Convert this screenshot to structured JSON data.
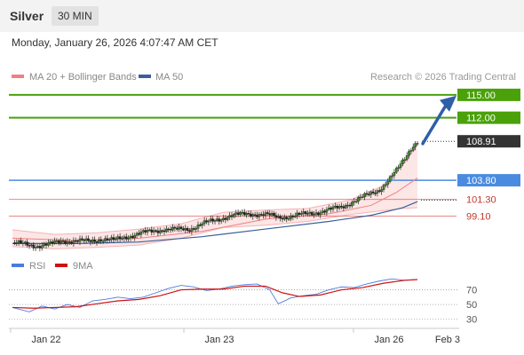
{
  "header": {
    "title": "Silver",
    "timeframe": "30 MIN"
  },
  "datetime": "Monday, January 26, 2026 4:07:47 AM CET",
  "legend": {
    "bollinger_label": "MA 20 + Bollinger Bands",
    "ma50_label": "MA 50",
    "copyright": "Research © 2026 Trading Central",
    "rsi_label": "RSI",
    "rsi_ma_label": "9MA"
  },
  "colors": {
    "bollinger": "#f08080",
    "ma50": "#3a5f9a",
    "resistance": "#4aa10a",
    "pivot": "#4a8be0",
    "support": "#e06060",
    "current": "#333333",
    "arrow": "#2f5fa8",
    "rsi": "#4a7be0",
    "rsi_ma": "#d01010"
  },
  "chart_data": [
    {
      "type": "candlestick",
      "title": "Silver",
      "x_tick_labels": [
        "Jan 22",
        "Jan 23",
        "Jan 26",
        "Feb 3"
      ],
      "ylim": [
        94.5,
        116.5
      ],
      "levels": [
        {
          "value": 115.0,
          "label": "115.00",
          "kind": "resistance"
        },
        {
          "value": 112.0,
          "label": "112.00",
          "kind": "resistance"
        },
        {
          "value": 108.91,
          "label": "108.91",
          "kind": "current"
        },
        {
          "value": 103.8,
          "label": "103.80",
          "kind": "pivot"
        },
        {
          "value": 101.3,
          "label": "101.30",
          "kind": "support"
        },
        {
          "value": 99.1,
          "label": "99.10",
          "kind": "support"
        }
      ],
      "close_series": [
        {
          "x": 0,
          "y": 95.6
        },
        {
          "x": 6,
          "y": 95.4
        },
        {
          "x": 12,
          "y": 95.2
        },
        {
          "x": 18,
          "y": 95.4
        },
        {
          "x": 24,
          "y": 95.9
        },
        {
          "x": 30,
          "y": 95.8
        },
        {
          "x": 36,
          "y": 95.8
        },
        {
          "x": 42,
          "y": 96.1
        },
        {
          "x": 48,
          "y": 95.9
        },
        {
          "x": 54,
          "y": 96.4
        },
        {
          "x": 60,
          "y": 96.8
        },
        {
          "x": 66,
          "y": 97.1
        },
        {
          "x": 72,
          "y": 97.4
        },
        {
          "x": 78,
          "y": 97.3
        },
        {
          "x": 84,
          "y": 97.4
        },
        {
          "x": 90,
          "y": 98.1
        },
        {
          "x": 96,
          "y": 98.5
        },
        {
          "x": 102,
          "y": 99.1
        },
        {
          "x": 108,
          "y": 99.3
        },
        {
          "x": 114,
          "y": 99.4
        },
        {
          "x": 120,
          "y": 99.3
        },
        {
          "x": 126,
          "y": 98.9
        },
        {
          "x": 132,
          "y": 99.1
        },
        {
          "x": 138,
          "y": 99.3
        },
        {
          "x": 144,
          "y": 99.6
        },
        {
          "x": 150,
          "y": 99.9
        },
        {
          "x": 156,
          "y": 100.3
        },
        {
          "x": 162,
          "y": 101.1
        },
        {
          "x": 168,
          "y": 101.8
        },
        {
          "x": 174,
          "y": 102.6
        },
        {
          "x": 178,
          "y": 103.7
        },
        {
          "x": 182,
          "y": 105.0
        },
        {
          "x": 186,
          "y": 106.7
        },
        {
          "x": 189,
          "y": 108.1
        },
        {
          "x": 192,
          "y": 108.91
        }
      ],
      "ma20_series": [
        {
          "x": 0,
          "y": 96.2
        },
        {
          "x": 30,
          "y": 95.9
        },
        {
          "x": 60,
          "y": 96.2
        },
        {
          "x": 90,
          "y": 97.1
        },
        {
          "x": 120,
          "y": 98.7
        },
        {
          "x": 150,
          "y": 99.4
        },
        {
          "x": 170,
          "y": 100.5
        },
        {
          "x": 182,
          "y": 102.2
        },
        {
          "x": 192,
          "y": 104.1
        }
      ],
      "bollinger_upper": [
        {
          "x": 0,
          "y": 97.3
        },
        {
          "x": 20,
          "y": 96.7
        },
        {
          "x": 40,
          "y": 96.9
        },
        {
          "x": 60,
          "y": 97.4
        },
        {
          "x": 80,
          "y": 98.1
        },
        {
          "x": 100,
          "y": 99.6
        },
        {
          "x": 120,
          "y": 99.9
        },
        {
          "x": 140,
          "y": 100.1
        },
        {
          "x": 160,
          "y": 101.2
        },
        {
          "x": 175,
          "y": 103.0
        },
        {
          "x": 185,
          "y": 105.8
        },
        {
          "x": 192,
          "y": 108.5
        }
      ],
      "bollinger_lower": [
        {
          "x": 0,
          "y": 95.1
        },
        {
          "x": 20,
          "y": 94.8
        },
        {
          "x": 40,
          "y": 95.0
        },
        {
          "x": 60,
          "y": 95.3
        },
        {
          "x": 80,
          "y": 96.2
        },
        {
          "x": 100,
          "y": 97.6
        },
        {
          "x": 120,
          "y": 97.9
        },
        {
          "x": 140,
          "y": 98.4
        },
        {
          "x": 160,
          "y": 99.3
        },
        {
          "x": 175,
          "y": 99.8
        },
        {
          "x": 185,
          "y": 100.1
        },
        {
          "x": 192,
          "y": 100.2
        }
      ],
      "ma50_series": [
        {
          "x": 0,
          "y": 95.5
        },
        {
          "x": 30,
          "y": 95.5
        },
        {
          "x": 60,
          "y": 95.7
        },
        {
          "x": 90,
          "y": 96.4
        },
        {
          "x": 120,
          "y": 97.4
        },
        {
          "x": 150,
          "y": 98.4
        },
        {
          "x": 170,
          "y": 99.2
        },
        {
          "x": 185,
          "y": 100.2
        },
        {
          "x": 192,
          "y": 101.0
        }
      ]
    },
    {
      "type": "line",
      "title": "RSI",
      "ylim": [
        20,
        90
      ],
      "y_ticks": [
        30,
        50,
        70
      ],
      "series": [
        {
          "name": "RSI",
          "values": [
            {
              "x": 0,
              "y": 46
            },
            {
              "x": 8,
              "y": 40
            },
            {
              "x": 14,
              "y": 48
            },
            {
              "x": 20,
              "y": 44
            },
            {
              "x": 26,
              "y": 50
            },
            {
              "x": 32,
              "y": 46
            },
            {
              "x": 38,
              "y": 55
            },
            {
              "x": 44,
              "y": 57
            },
            {
              "x": 50,
              "y": 60
            },
            {
              "x": 56,
              "y": 58
            },
            {
              "x": 62,
              "y": 60
            },
            {
              "x": 68,
              "y": 66
            },
            {
              "x": 74,
              "y": 72
            },
            {
              "x": 80,
              "y": 76
            },
            {
              "x": 86,
              "y": 74
            },
            {
              "x": 92,
              "y": 69
            },
            {
              "x": 98,
              "y": 71
            },
            {
              "x": 104,
              "y": 75
            },
            {
              "x": 110,
              "y": 77
            },
            {
              "x": 116,
              "y": 78
            },
            {
              "x": 122,
              "y": 70
            },
            {
              "x": 126,
              "y": 51
            },
            {
              "x": 132,
              "y": 59
            },
            {
              "x": 138,
              "y": 62
            },
            {
              "x": 144,
              "y": 64
            },
            {
              "x": 150,
              "y": 70
            },
            {
              "x": 156,
              "y": 74
            },
            {
              "x": 162,
              "y": 73
            },
            {
              "x": 168,
              "y": 78
            },
            {
              "x": 174,
              "y": 82
            },
            {
              "x": 180,
              "y": 85
            },
            {
              "x": 186,
              "y": 83
            },
            {
              "x": 192,
              "y": 84
            }
          ]
        },
        {
          "name": "9MA",
          "values": [
            {
              "x": 0,
              "y": 46
            },
            {
              "x": 10,
              "y": 45
            },
            {
              "x": 20,
              "y": 46
            },
            {
              "x": 30,
              "y": 47
            },
            {
              "x": 40,
              "y": 51
            },
            {
              "x": 50,
              "y": 55
            },
            {
              "x": 60,
              "y": 57
            },
            {
              "x": 70,
              "y": 62
            },
            {
              "x": 80,
              "y": 70
            },
            {
              "x": 90,
              "y": 71
            },
            {
              "x": 100,
              "y": 71
            },
            {
              "x": 110,
              "y": 75
            },
            {
              "x": 120,
              "y": 75
            },
            {
              "x": 128,
              "y": 66
            },
            {
              "x": 136,
              "y": 61
            },
            {
              "x": 146,
              "y": 63
            },
            {
              "x": 156,
              "y": 70
            },
            {
              "x": 166,
              "y": 73
            },
            {
              "x": 176,
              "y": 79
            },
            {
              "x": 186,
              "y": 83
            },
            {
              "x": 192,
              "y": 84
            }
          ]
        }
      ]
    }
  ]
}
